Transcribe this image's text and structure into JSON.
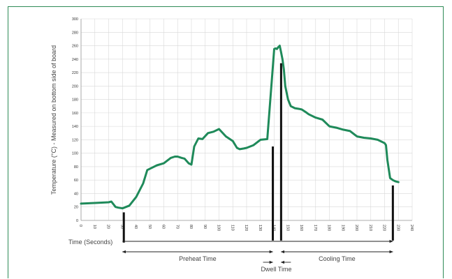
{
  "colors": {
    "frame": "#2e8b57",
    "grid": "#d8d8d8",
    "line": "#1f8a5a",
    "markers": "#111111"
  },
  "chart_data": {
    "type": "line",
    "title": "",
    "ylabel": "Temperature (°C) - Measured on bottom side of board",
    "xlabel": "Time (Seconds)",
    "xlim": [
      0,
      240
    ],
    "ylim": [
      0,
      300
    ],
    "grid": true,
    "legend": "none",
    "xticks": [
      0,
      10,
      20,
      30,
      40,
      50,
      60,
      70,
      80,
      90,
      100,
      110,
      120,
      130,
      140,
      150,
      160,
      170,
      180,
      190,
      200,
      210,
      220,
      230,
      240
    ],
    "yticks": [
      0,
      20,
      40,
      60,
      80,
      100,
      120,
      140,
      160,
      180,
      200,
      220,
      240,
      260,
      280,
      300
    ],
    "series": [
      {
        "x": [
          0,
          10,
          20,
          22,
          25,
          27,
          30,
          35,
          40,
          45,
          48,
          50,
          55,
          60,
          65,
          68,
          70,
          73,
          75,
          78,
          80,
          82,
          85,
          88,
          92,
          96,
          100,
          105,
          110,
          113,
          115,
          118,
          120,
          125,
          130,
          135,
          140,
          141,
          142,
          143,
          144,
          145,
          146,
          147,
          148,
          150,
          152,
          155,
          158,
          160,
          163,
          165,
          170,
          175,
          180,
          185,
          190,
          195,
          200,
          205,
          210,
          215,
          220,
          221,
          222,
          224,
          226,
          228,
          230
        ],
        "y": [
          25,
          26,
          27,
          28,
          20,
          19,
          18,
          22,
          35,
          55,
          75,
          77,
          82,
          85,
          93,
          95,
          95,
          93,
          92,
          85,
          83,
          110,
          122,
          121,
          130,
          132,
          136,
          125,
          118,
          108,
          106,
          107,
          108,
          112,
          120,
          121,
          255,
          256,
          255,
          258,
          260,
          250,
          240,
          225,
          200,
          180,
          170,
          167,
          166,
          165,
          161,
          158,
          153,
          150,
          140,
          138,
          135,
          133,
          125,
          123,
          122,
          120,
          115,
          112,
          90,
          63,
          60,
          58,
          57
        ]
      }
    ],
    "annotations": [
      {
        "text": "Preheat Time",
        "from": 30,
        "to": 139
      },
      {
        "text": "Dwell Time",
        "from": 139,
        "to": 145
      },
      {
        "text": "Cooling Time",
        "from": 145,
        "to": 226
      }
    ],
    "markers": [
      {
        "x": 31,
        "top": 12,
        "bottom": -33
      },
      {
        "x": 139,
        "top": 110,
        "bottom": -30
      },
      {
        "x": 145,
        "top": 234,
        "bottom": -30
      },
      {
        "x": 226,
        "top": 52,
        "bottom": -30
      }
    ]
  }
}
